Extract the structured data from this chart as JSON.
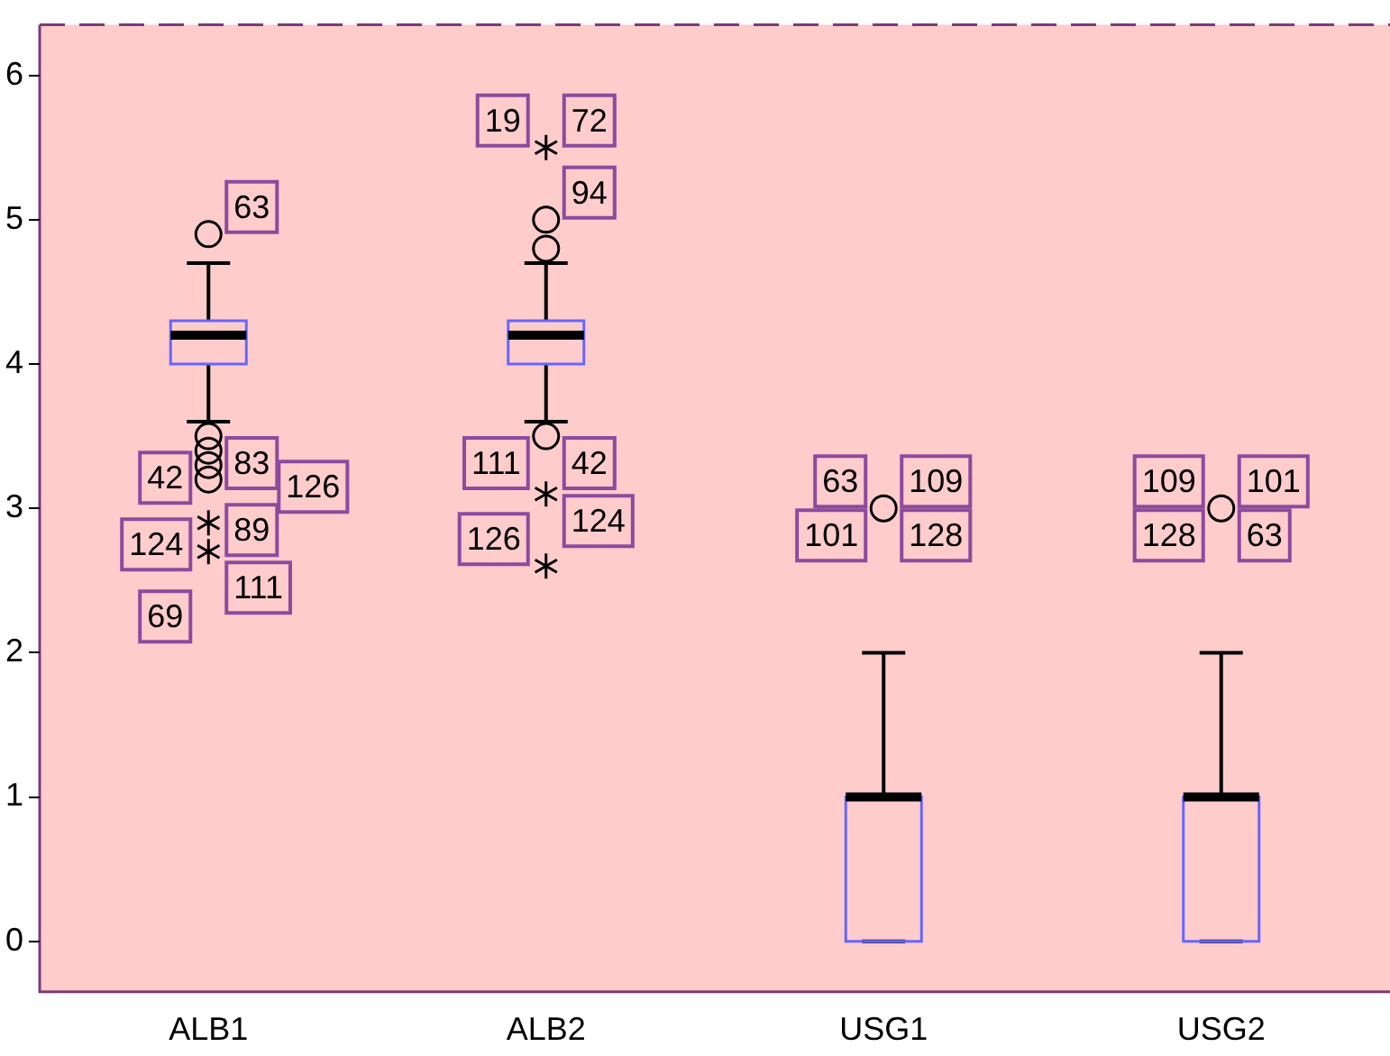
{
  "chart_data": {
    "type": "box",
    "categories": [
      "ALB1",
      "ALB2",
      "USG1",
      "USG2"
    ],
    "boxes": [
      {
        "low": 3.6,
        "q1": 4.0,
        "median": 4.2,
        "q3": 4.3,
        "high": 4.7,
        "outliers": [
          4.9,
          3.5,
          3.4,
          3.3,
          3.2,
          2.9,
          2.7
        ]
      },
      {
        "low": 3.6,
        "q1": 4.0,
        "median": 4.2,
        "q3": 4.3,
        "high": 4.7,
        "outliers": [
          5.5,
          5.0,
          4.8,
          3.5,
          3.1,
          2.6
        ]
      },
      {
        "low": 0,
        "q1": 0,
        "median": 1,
        "q3": 1,
        "high": 2,
        "outliers": [
          3
        ]
      },
      {
        "low": 0,
        "q1": 0,
        "median": 1,
        "q3": 1,
        "high": 2,
        "outliers": [
          3
        ]
      }
    ],
    "color": "#6666ff",
    "ylim": [
      -0.35,
      6.35
    ],
    "yticks": [
      0,
      1,
      2,
      3,
      4,
      5,
      6
    ],
    "grid": false,
    "legend": false,
    "marker": "circle",
    "annotations": [
      "63",
      "83",
      "42",
      "89",
      "124",
      "111",
      "69",
      "126",
      "72",
      "19",
      "94",
      "42",
      "111",
      "124",
      "126",
      "109",
      "63",
      "128",
      "101",
      "101",
      "109",
      "63",
      "128"
    ]
  }
}
